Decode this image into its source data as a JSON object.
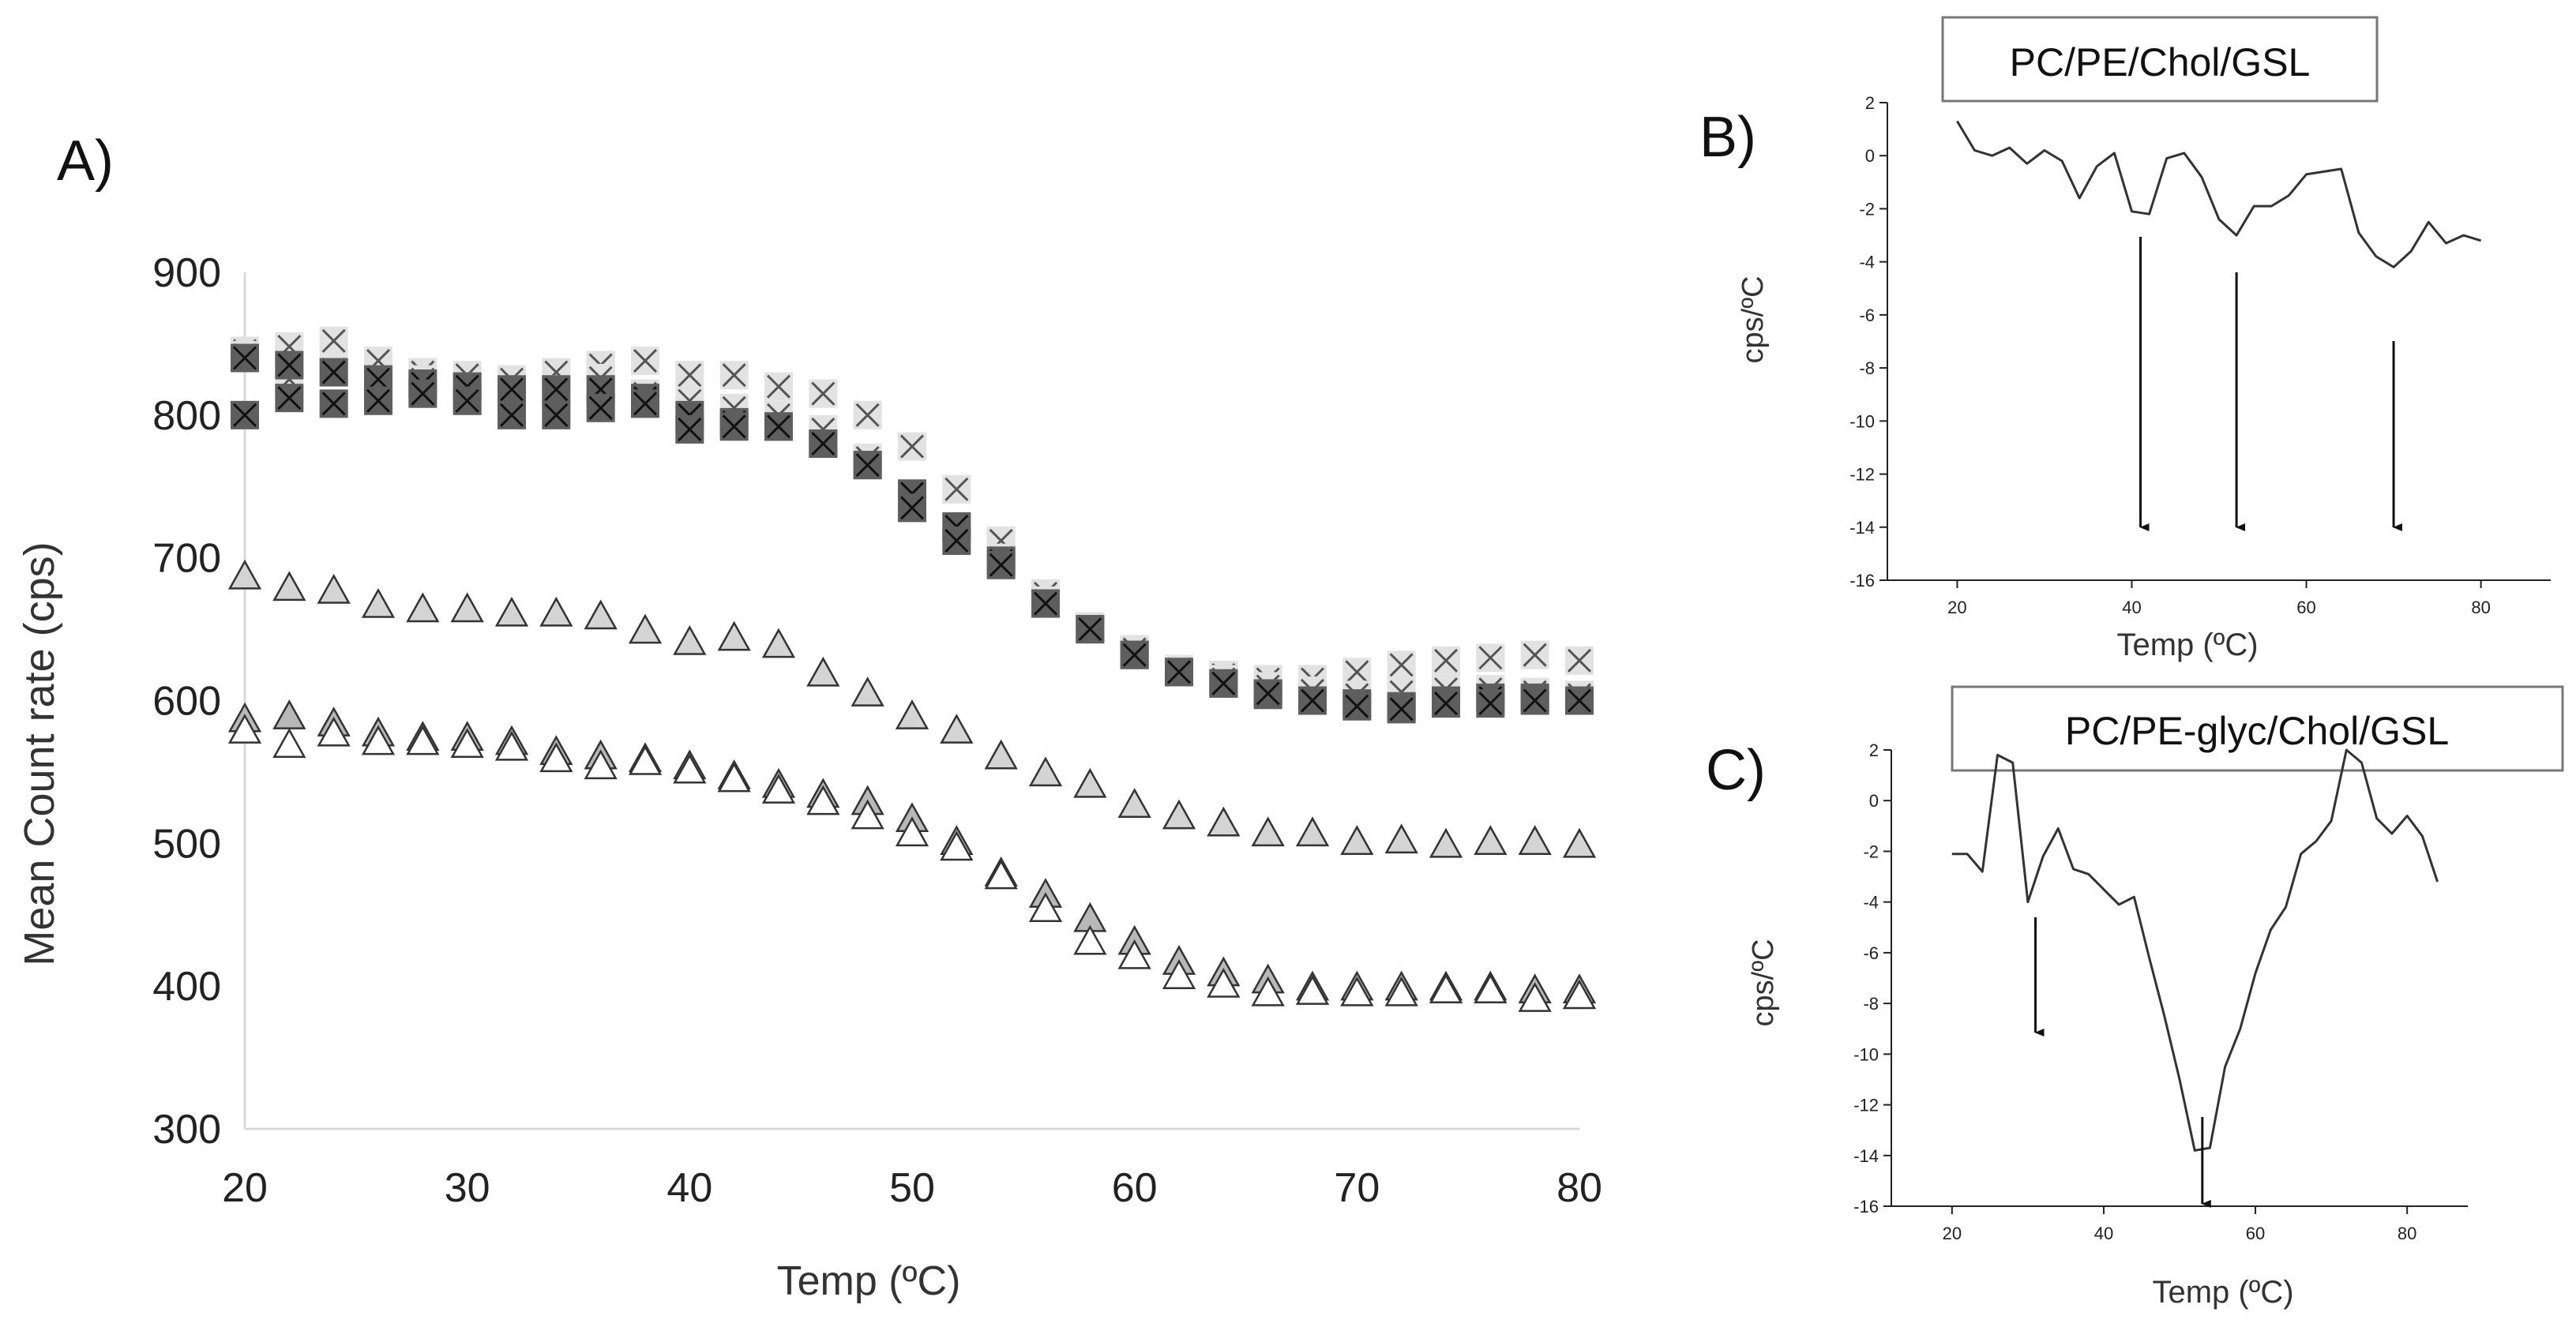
{
  "chart_data": [
    {
      "panel": "A)",
      "type": "scatter",
      "title": "",
      "xlabel": "Temp (ºC)",
      "ylabel": "Mean Count rate (cps)",
      "xlim": [
        20,
        80
      ],
      "ylim": [
        300,
        900
      ],
      "xticks": [
        "20",
        "30",
        "40",
        "50",
        "60",
        "70",
        "80"
      ],
      "yticks": [
        "300",
        "400",
        "500",
        "600",
        "700",
        "800",
        "900"
      ],
      "x": [
        20,
        22,
        24,
        26,
        28,
        30,
        32,
        34,
        36,
        38,
        40,
        42,
        44,
        46,
        48,
        50,
        52,
        54,
        56,
        58,
        60,
        62,
        64,
        66,
        68,
        70,
        72,
        74,
        76,
        78,
        80
      ],
      "series": [
        {
          "name": "light cross 1",
          "marker": "light-cross",
          "values": [
            845,
            848,
            852,
            838,
            830,
            828,
            825,
            830,
            835,
            838,
            828,
            828,
            820,
            815,
            800,
            778,
            748,
            712,
            675,
            650,
            635,
            622,
            618,
            615,
            615,
            620,
            625,
            628,
            630,
            632,
            628
          ]
        },
        {
          "name": "light cross 2",
          "marker": "light-cross",
          "values": [
            842,
            825,
            832,
            825,
            825,
            820,
            815,
            818,
            826,
            815,
            810,
            805,
            800,
            790,
            770,
            745,
            720,
            700,
            670,
            652,
            636,
            622,
            615,
            610,
            607,
            604,
            606,
            608,
            608,
            606,
            604
          ]
        },
        {
          "name": "dark cross 1",
          "marker": "dark-cross",
          "values": [
            840,
            835,
            830,
            825,
            822,
            820,
            818,
            818,
            818,
            812,
            800,
            795,
            792,
            780,
            765,
            745,
            722,
            698,
            668,
            650,
            632,
            620,
            612,
            604,
            600,
            598,
            596,
            600,
            602,
            602,
            600
          ]
        },
        {
          "name": "dark cross 2",
          "marker": "dark-cross",
          "values": [
            800,
            812,
            808,
            810,
            815,
            810,
            800,
            800,
            805,
            808,
            790,
            792,
            792,
            780,
            765,
            735,
            712,
            695,
            668,
            650,
            632,
            620,
            612,
            605,
            600,
            596,
            594,
            598,
            598,
            600,
            600
          ]
        },
        {
          "name": "triangle upper",
          "marker": "triangle",
          "values": [
            688,
            680,
            678,
            668,
            665,
            665,
            662,
            662,
            660,
            650,
            642,
            645,
            640,
            620,
            606,
            590,
            580,
            562,
            550,
            542,
            528,
            520,
            515,
            508,
            508,
            502,
            503,
            500,
            502,
            502,
            500
          ]
        },
        {
          "name": "triangle lower 1",
          "marker": "triangle",
          "values": [
            588,
            590,
            585,
            578,
            575,
            575,
            572,
            565,
            562,
            560,
            555,
            548,
            542,
            535,
            530,
            518,
            502,
            480,
            465,
            448,
            432,
            418,
            410,
            405,
            400,
            400,
            400,
            400,
            400,
            398,
            398
          ]
        },
        {
          "name": "triangle lower 2",
          "marker": "triangle",
          "values": [
            580,
            570,
            578,
            572,
            572,
            570,
            568,
            560,
            555,
            558,
            552,
            546,
            538,
            530,
            520,
            508,
            498,
            478,
            455,
            432,
            422,
            408,
            402,
            396,
            397,
            396,
            396,
            398,
            398,
            392,
            394
          ]
        }
      ]
    },
    {
      "panel": "B)",
      "type": "line",
      "title": "PC/PE/Chol/GSL",
      "xlabel": "Temp (ºC)",
      "ylabel": "cps/ºC",
      "xlim": [
        12,
        88
      ],
      "ylim": [
        -16,
        2
      ],
      "xticks": [
        "20",
        "40",
        "60",
        "80"
      ],
      "yticks": [
        "2",
        "0",
        "-2",
        "-4",
        "-6",
        "-8",
        "-10",
        "-12",
        "-14",
        "-16"
      ],
      "x": [
        20,
        22,
        24,
        26,
        28,
        30,
        32,
        34,
        36,
        38,
        40,
        42,
        44,
        46,
        48,
        50,
        52,
        54,
        56,
        58,
        60,
        62,
        64,
        66,
        68,
        70,
        72,
        74,
        76,
        78,
        80
      ],
      "values": [
        1.3,
        0.2,
        0.0,
        0.3,
        -0.3,
        0.2,
        -0.2,
        -1.6,
        -0.4,
        0.1,
        -2.1,
        -2.2,
        -0.1,
        0.1,
        -0.8,
        -2.4,
        -3.0,
        -1.9,
        -1.9,
        -1.5,
        -0.7,
        -0.6,
        -0.5,
        -2.9,
        -3.8,
        -4.2,
        -3.6,
        -2.5,
        -3.3,
        -3.0,
        -3.2
      ],
      "arrows_at": [
        41,
        52,
        70
      ]
    },
    {
      "panel": "C)",
      "type": "line",
      "title": "PC/PE-glyc/Chol/GSL",
      "xlabel": "Temp (ºC)",
      "ylabel": "cps/ºC",
      "xlim": [
        12,
        88
      ],
      "ylim": [
        -16,
        2
      ],
      "xticks": [
        "20",
        "40",
        "60",
        "80"
      ],
      "yticks": [
        "2",
        "0",
        "-2",
        "-4",
        "-6",
        "-8",
        "-10",
        "-12",
        "-14",
        "-16"
      ],
      "x": [
        20,
        22,
        24,
        26,
        28,
        30,
        32,
        34,
        36,
        38,
        40,
        42,
        44,
        46,
        48,
        50,
        52,
        54,
        56,
        58,
        60,
        62,
        64,
        66,
        68,
        70,
        72,
        74,
        76,
        78,
        80,
        82,
        84
      ],
      "values": [
        -2.1,
        -2.1,
        -2.8,
        1.8,
        1.5,
        -4.0,
        -2.2,
        -1.1,
        -2.7,
        -2.9,
        -3.5,
        -4.1,
        -3.8,
        -6.2,
        -8.5,
        -11.0,
        -13.8,
        -13.7,
        -10.5,
        -9.0,
        -6.8,
        -5.1,
        -4.2,
        -2.1,
        -1.6,
        -0.8,
        2.0,
        1.5,
        -0.7,
        -1.3,
        -0.6,
        -1.4,
        -3.2
      ],
      "arrows_at": [
        31,
        53
      ]
    }
  ]
}
